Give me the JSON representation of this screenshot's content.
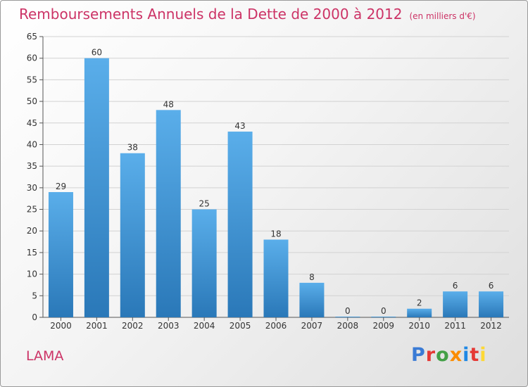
{
  "header": {
    "title": "Remboursements Annuels de la Dette de 2000 à 2012",
    "unit": "(en milliers d'€)"
  },
  "footer": {
    "commune": "LAMA",
    "logo": [
      "P",
      "r",
      "o",
      "x",
      "i",
      "t",
      "i"
    ],
    "logo_colors": [
      "#3a7bd5",
      "#e53935",
      "#43a047",
      "#fb8c00",
      "#1e88e5",
      "#e53935",
      "#fdd835"
    ]
  },
  "chart_data": {
    "type": "bar",
    "categories": [
      "2000",
      "2001",
      "2002",
      "2003",
      "2004",
      "2005",
      "2006",
      "2007",
      "2008",
      "2009",
      "2010",
      "2011",
      "2012"
    ],
    "values": [
      29,
      60,
      38,
      48,
      25,
      43,
      18,
      8,
      0,
      0,
      2,
      6,
      6
    ],
    "ylim": [
      0,
      65
    ],
    "yticks": [
      0,
      5,
      10,
      15,
      20,
      25,
      30,
      35,
      40,
      45,
      50,
      55,
      60,
      65
    ],
    "grid": true,
    "bar_color_top": "#5aaeea",
    "bar_color_bottom": "#2a78b8"
  }
}
